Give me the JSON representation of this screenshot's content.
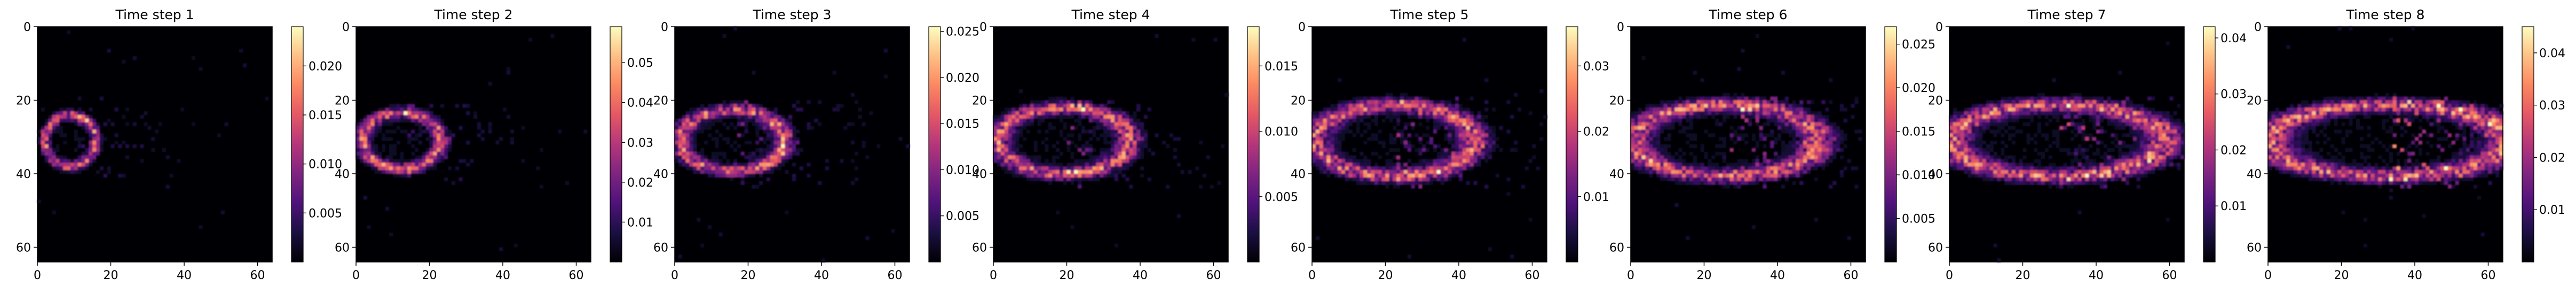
{
  "chart_data": [
    {
      "type": "heatmap",
      "title": "Time step 1",
      "xlim": [
        0,
        64
      ],
      "ylim": [
        64,
        0
      ],
      "xticks": [
        "0",
        "20",
        "40",
        "60"
      ],
      "yticks": [
        "0",
        "20",
        "40",
        "60"
      ],
      "colormap": "magma",
      "colorbar_range": [
        0,
        0.024
      ],
      "colorbar_ticks": [
        "0.005",
        "0.010",
        "0.015",
        "0.020"
      ],
      "colorbar_values": [
        0.005,
        0.01,
        0.015,
        0.02
      ]
    },
    {
      "type": "heatmap",
      "title": "Time step 2",
      "xlim": [
        0,
        64
      ],
      "ylim": [
        64,
        0
      ],
      "xticks": [
        "0",
        "20",
        "40",
        "60"
      ],
      "yticks": [
        "0",
        "20",
        "40",
        "60"
      ],
      "colormap": "magma",
      "colorbar_range": [
        0,
        0.059
      ],
      "colorbar_ticks": [
        "0.01",
        "0.02",
        "0.03",
        "0.04",
        "0.05"
      ],
      "colorbar_values": [
        0.01,
        0.02,
        0.03,
        0.04,
        0.05
      ]
    },
    {
      "type": "heatmap",
      "title": "Time step 3",
      "xlim": [
        0,
        64
      ],
      "ylim": [
        64,
        0
      ],
      "xticks": [
        "0",
        "20",
        "40",
        "60"
      ],
      "yticks": [
        "0",
        "20",
        "40",
        "60"
      ],
      "colormap": "magma",
      "colorbar_range": [
        0,
        0.0255
      ],
      "colorbar_ticks": [
        "0.005",
        "0.010",
        "0.015",
        "0.020",
        "0.025"
      ],
      "colorbar_values": [
        0.005,
        0.01,
        0.015,
        0.02,
        0.025
      ]
    },
    {
      "type": "heatmap",
      "title": "Time step 4",
      "xlim": [
        0,
        64
      ],
      "ylim": [
        64,
        0
      ],
      "xticks": [
        "0",
        "20",
        "40",
        "60"
      ],
      "yticks": [
        "0",
        "20",
        "40",
        "60"
      ],
      "colormap": "magma",
      "colorbar_range": [
        0,
        0.018
      ],
      "colorbar_ticks": [
        "0.005",
        "0.010",
        "0.015"
      ],
      "colorbar_values": [
        0.005,
        0.01,
        0.015
      ]
    },
    {
      "type": "heatmap",
      "title": "Time step 5",
      "xlim": [
        0,
        64
      ],
      "ylim": [
        64,
        0
      ],
      "xticks": [
        "0",
        "20",
        "40",
        "60"
      ],
      "yticks": [
        "0",
        "20",
        "40",
        "60"
      ],
      "colormap": "magma",
      "colorbar_range": [
        0,
        0.036
      ],
      "colorbar_ticks": [
        "0.01",
        "0.02",
        "0.03"
      ],
      "colorbar_values": [
        0.01,
        0.02,
        0.03
      ]
    },
    {
      "type": "heatmap",
      "title": "Time step 6",
      "xlim": [
        0,
        64
      ],
      "ylim": [
        64,
        0
      ],
      "xticks": [
        "0",
        "20",
        "40",
        "60"
      ],
      "yticks": [
        "0",
        "20",
        "40",
        "60"
      ],
      "colormap": "magma",
      "colorbar_range": [
        0,
        0.027
      ],
      "colorbar_ticks": [
        "0.005",
        "0.010",
        "0.015",
        "0.020",
        "0.025"
      ],
      "colorbar_values": [
        0.005,
        0.01,
        0.015,
        0.02,
        0.025
      ]
    },
    {
      "type": "heatmap",
      "title": "Time step 7",
      "xlim": [
        0,
        64
      ],
      "ylim": [
        64,
        0
      ],
      "xticks": [
        "0",
        "20",
        "40",
        "60"
      ],
      "yticks": [
        "0",
        "20",
        "40",
        "60"
      ],
      "colormap": "magma",
      "colorbar_range": [
        0,
        0.042
      ],
      "colorbar_ticks": [
        "0.01",
        "0.02",
        "0.03",
        "0.04"
      ],
      "colorbar_values": [
        0.01,
        0.02,
        0.03,
        0.04
      ]
    },
    {
      "type": "heatmap",
      "title": "Time step 8",
      "xlim": [
        0,
        64
      ],
      "ylim": [
        64,
        0
      ],
      "xticks": [
        "0",
        "20",
        "40",
        "60"
      ],
      "yticks": [
        "0",
        "20",
        "40",
        "60"
      ],
      "colormap": "magma",
      "colorbar_range": [
        0,
        0.045
      ],
      "colorbar_ticks": [
        "0.01",
        "0.02",
        "0.03",
        "0.04"
      ],
      "colorbar_values": [
        0.01,
        0.02,
        0.03,
        0.04
      ]
    }
  ]
}
